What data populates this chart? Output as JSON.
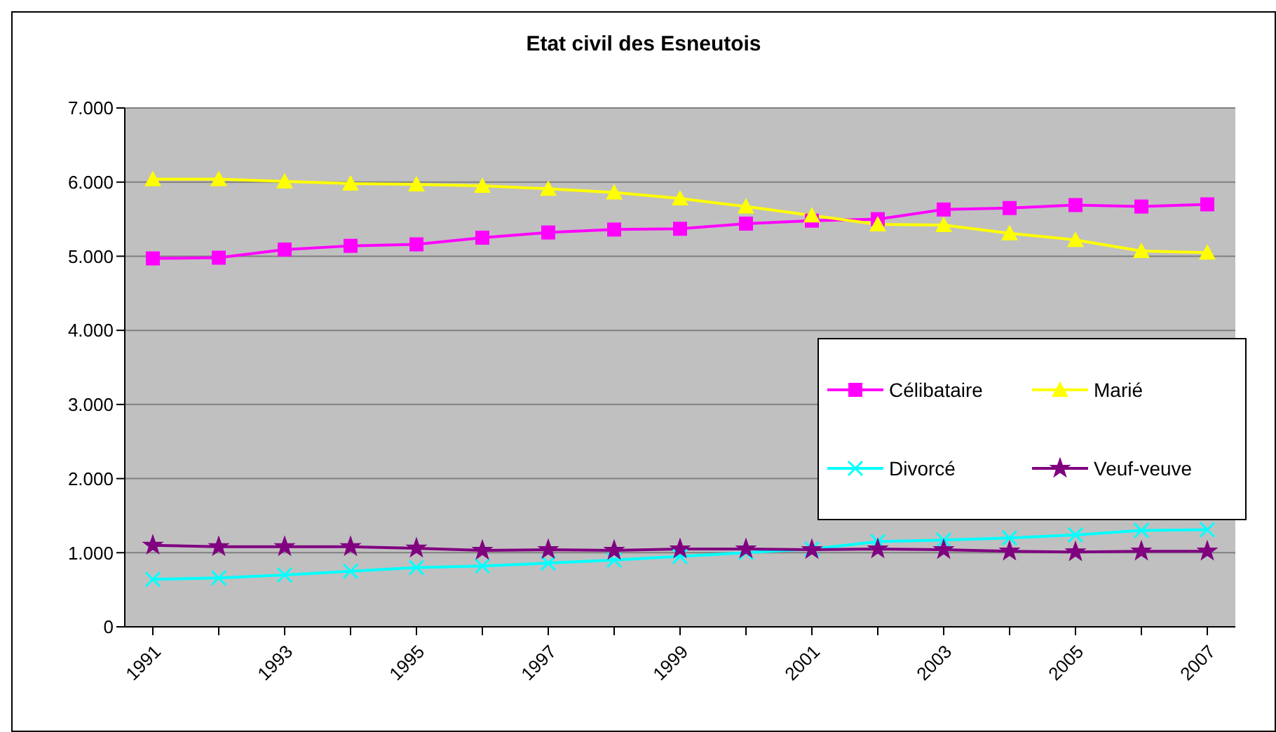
{
  "chart_data": {
    "type": "line",
    "title": "Etat civil des Esneutois",
    "categories": [
      "1991",
      null,
      "1993",
      null,
      "1995",
      null,
      "1997",
      null,
      "1999",
      null,
      "2001",
      null,
      "2003",
      null,
      "2005",
      null,
      "2007"
    ],
    "series": [
      {
        "name": "Célibataire",
        "color": "#ff00ff",
        "marker": "square",
        "values": [
          4970,
          4980,
          5090,
          5140,
          5160,
          5250,
          5320,
          5360,
          5370,
          5440,
          5480,
          5500,
          5630,
          5650,
          5690,
          5670,
          5700
        ]
      },
      {
        "name": "Marié",
        "color": "#ffff00",
        "marker": "triangle",
        "values": [
          6040,
          6040,
          6010,
          5980,
          5970,
          5950,
          5910,
          5860,
          5780,
          5670,
          5550,
          5430,
          5420,
          5310,
          5220,
          5070,
          5050
        ]
      },
      {
        "name": "Divorcé",
        "color": "#00ffff",
        "marker": "cross",
        "values": [
          640,
          660,
          700,
          750,
          800,
          820,
          860,
          900,
          950,
          1000,
          1050,
          1150,
          1170,
          1200,
          1240,
          1300,
          1310
        ]
      },
      {
        "name": "Veuf-veuve",
        "color": "#800080",
        "marker": "star",
        "values": [
          1100,
          1080,
          1080,
          1080,
          1060,
          1030,
          1040,
          1030,
          1050,
          1050,
          1040,
          1050,
          1040,
          1020,
          1010,
          1020,
          1020
        ]
      }
    ],
    "ylim": [
      0,
      7000
    ],
    "yticks": [
      0,
      {
        "value": 1000,
        "label": "1.000"
      },
      {
        "value": 2000,
        "label": "2.000"
      },
      {
        "value": 3000,
        "label": "3.000"
      },
      {
        "value": 4000,
        "label": "4.000"
      },
      {
        "value": 5000,
        "label": "5.000"
      },
      {
        "value": 6000,
        "label": "6.000"
      },
      {
        "value": 7000,
        "label": "7.000"
      }
    ],
    "grid": "y",
    "legend": "right"
  }
}
